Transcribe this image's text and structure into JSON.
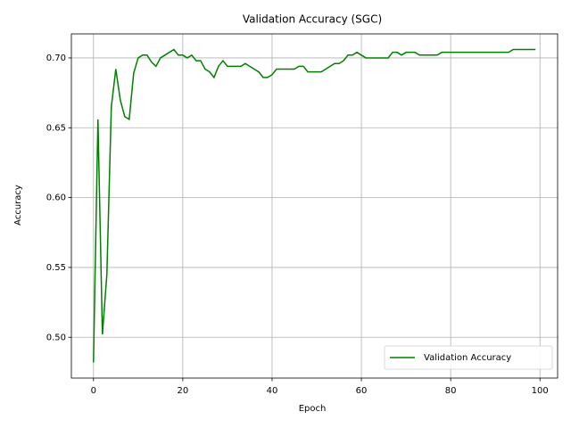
{
  "chart_data": {
    "type": "line",
    "title": "Validation Accuracy (SGC)",
    "xlabel": "Epoch",
    "ylabel": "Accuracy",
    "x": [
      0,
      1,
      2,
      3,
      4,
      5,
      6,
      7,
      8,
      9,
      10,
      11,
      12,
      13,
      14,
      15,
      16,
      17,
      18,
      19,
      20,
      21,
      22,
      23,
      24,
      25,
      26,
      27,
      28,
      29,
      30,
      31,
      32,
      33,
      34,
      35,
      36,
      37,
      38,
      39,
      40,
      41,
      42,
      43,
      44,
      45,
      46,
      47,
      48,
      49,
      50,
      51,
      52,
      53,
      54,
      55,
      56,
      57,
      58,
      59,
      60,
      61,
      62,
      63,
      64,
      65,
      66,
      67,
      68,
      69,
      70,
      71,
      72,
      73,
      74,
      75,
      76,
      77,
      78,
      79,
      80,
      81,
      82,
      83,
      84,
      85,
      86,
      87,
      88,
      89,
      90,
      91,
      92,
      93,
      94,
      95,
      96,
      97,
      98,
      99
    ],
    "series": [
      {
        "name": "Validation Accuracy",
        "color": "#008000",
        "values": [
          0.482,
          0.656,
          0.502,
          0.545,
          0.665,
          0.692,
          0.67,
          0.658,
          0.656,
          0.689,
          0.7,
          0.702,
          0.702,
          0.697,
          0.694,
          0.7,
          0.702,
          0.704,
          0.706,
          0.702,
          0.702,
          0.7,
          0.702,
          0.698,
          0.698,
          0.692,
          0.69,
          0.686,
          0.694,
          0.698,
          0.694,
          0.694,
          0.694,
          0.694,
          0.696,
          0.694,
          0.692,
          0.69,
          0.686,
          0.686,
          0.688,
          0.692,
          0.692,
          0.692,
          0.692,
          0.692,
          0.694,
          0.694,
          0.69,
          0.69,
          0.69,
          0.69,
          0.692,
          0.694,
          0.696,
          0.696,
          0.698,
          0.702,
          0.702,
          0.704,
          0.702,
          0.7,
          0.7,
          0.7,
          0.7,
          0.7,
          0.7,
          0.704,
          0.704,
          0.702,
          0.704,
          0.704,
          0.704,
          0.702,
          0.702,
          0.702,
          0.702,
          0.702,
          0.704,
          0.704,
          0.704,
          0.704,
          0.704,
          0.704,
          0.704,
          0.704,
          0.704,
          0.704,
          0.704,
          0.704,
          0.704,
          0.704,
          0.704,
          0.704,
          0.706,
          0.706,
          0.706,
          0.706,
          0.706,
          0.706
        ]
      }
    ],
    "xlim": [
      -4.95,
      103.95
    ],
    "xticks": [
      0,
      20,
      40,
      60,
      80,
      100
    ],
    "ylim": [
      0.4708,
      0.7172
    ],
    "yticks": [
      {
        "value": 0.5,
        "label": "0.50"
      },
      0.55,
      {
        "value": 0.6,
        "label": "0.60"
      },
      0.65,
      {
        "value": 0.7,
        "label": "0.70"
      }
    ],
    "grid": true,
    "legend": "lower right"
  }
}
